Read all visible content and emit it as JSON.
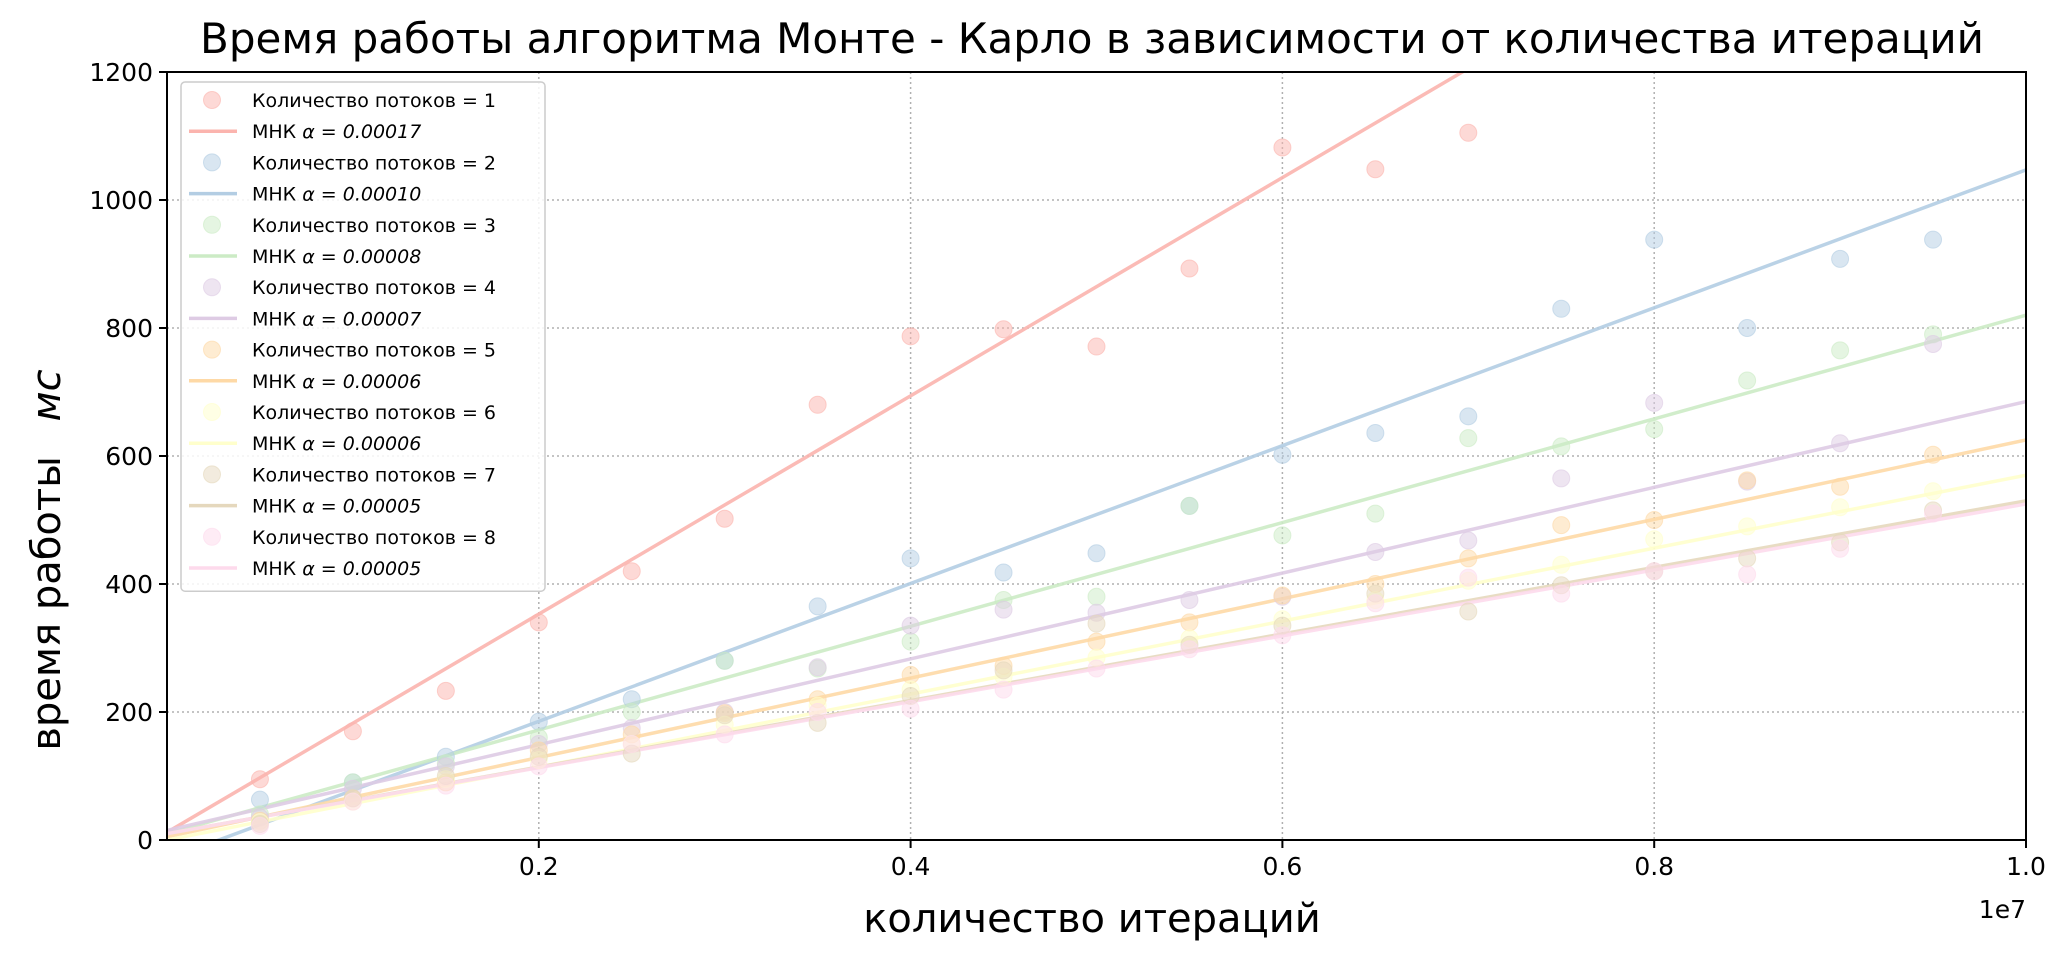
{
  "chart_data": {
    "type": "scatter",
    "title": "Время работы алгоритма Монте - Карло в зависимости от количества итераций",
    "xlabel": "количество итераций",
    "ylabel": "время работы",
    "ylabel_unit": "мс",
    "x_offset_label": "1e7",
    "xlim": [
      0.0,
      1.0
    ],
    "ylim": [
      0,
      1200
    ],
    "x_scale_note": "x values in units of 1e7",
    "xticks": [
      0.2,
      0.4,
      0.6,
      0.8,
      1.0
    ],
    "xtick_labels": [
      "0.2",
      "0.4",
      "0.6",
      "0.8",
      "1.0"
    ],
    "yticks": [
      0,
      200,
      400,
      600,
      800,
      1000,
      1200
    ],
    "ytick_labels": [
      "0",
      "200",
      "400",
      "600",
      "800",
      "1000",
      "1200"
    ],
    "grid": true,
    "legend_position": "upper-left",
    "x": [
      0.05,
      0.1,
      0.15,
      0.2,
      0.25,
      0.3,
      0.35,
      0.4,
      0.45,
      0.5,
      0.55,
      0.6,
      0.65,
      0.7,
      0.75,
      0.8,
      0.85,
      0.9,
      0.95
    ],
    "series": [
      {
        "name": "Количество потоков = 1",
        "fit_label": "МНК",
        "alpha_text": "α = 0.00017",
        "alpha": 0.00017,
        "color": "#fbb4ae",
        "values": [
          95,
          170,
          233,
          340,
          420,
          502,
          680,
          787,
          798,
          771,
          893,
          1082,
          1048,
          1105
        ],
        "fit": [
          12,
          1717
        ]
      },
      {
        "name": "Количество потоков = 2",
        "fit_label": "МНК",
        "alpha_text": "α = 0.00010",
        "alpha": 0.0001,
        "color": "#b3cde3",
        "values": [
          63,
          90,
          130,
          185,
          220,
          280,
          365,
          440,
          418,
          448,
          522,
          602,
          636,
          662,
          830,
          938,
          800,
          908,
          938
        ],
        "fit": [
          -30,
          1047
        ]
      },
      {
        "name": "Количество потоков = 3",
        "fit_label": "МНК",
        "alpha_text": "α = 0.00008",
        "alpha": 8e-05,
        "color": "#ccebc5",
        "values": [
          40,
          90,
          120,
          160,
          200,
          280,
          268,
          310,
          375,
          380,
          522,
          476,
          510,
          628,
          615,
          642,
          718,
          765,
          790
        ],
        "fit": [
          10,
          820
        ]
      },
      {
        "name": "Количество потоков = 4",
        "fit_label": "МНК",
        "alpha_text": "α = 0.00007",
        "alpha": 7e-05,
        "color": "#decbe4",
        "values": [
          35,
          80,
          115,
          150,
          175,
          200,
          270,
          335,
          360,
          355,
          375,
          380,
          450,
          468,
          565,
          683,
          560,
          620,
          775
        ],
        "fit": [
          15,
          685
        ]
      },
      {
        "name": "Количество потоков = 5",
        "fit_label": "МНК",
        "alpha_text": "α = 0.00006",
        "alpha": 6e-05,
        "color": "#fed9a6",
        "values": [
          30,
          65,
          90,
          140,
          165,
          198,
          220,
          258,
          272,
          310,
          340,
          382,
          400,
          440,
          492,
          500,
          562,
          552,
          602
        ],
        "fit": [
          5,
          625
        ]
      },
      {
        "name": "Количество потоков = 6",
        "fit_label": "МНК",
        "alpha_text": "α = 0.00006",
        "alpha": 6e-05,
        "color": "#ffffcc",
        "values": [
          28,
          60,
          95,
          125,
          150,
          180,
          210,
          235,
          255,
          285,
          315,
          345,
          375,
          405,
          430,
          470,
          490,
          520,
          545
        ],
        "fit": [
          0,
          570
        ]
      },
      {
        "name": "Количество потоков = 7",
        "fit_label": "МНК",
        "alpha_text": "α = 0.00005",
        "alpha": 5e-05,
        "color": "#e5d8bd",
        "values": [
          25,
          65,
          100,
          130,
          135,
          195,
          183,
          225,
          265,
          338,
          305,
          335,
          385,
          357,
          398,
          420,
          440,
          465,
          515
        ],
        "fit": [
          10,
          530
        ]
      },
      {
        "name": "Количество потоков = 8",
        "fit_label": "МНК",
        "alpha_text": "α = 0.00005",
        "alpha": 5e-05,
        "color": "#fddaec",
        "values": [
          22,
          60,
          85,
          115,
          150,
          165,
          200,
          205,
          235,
          268,
          298,
          320,
          370,
          410,
          385,
          420,
          415,
          455,
          510
        ],
        "fit": [
          10,
          525
        ]
      }
    ]
  }
}
